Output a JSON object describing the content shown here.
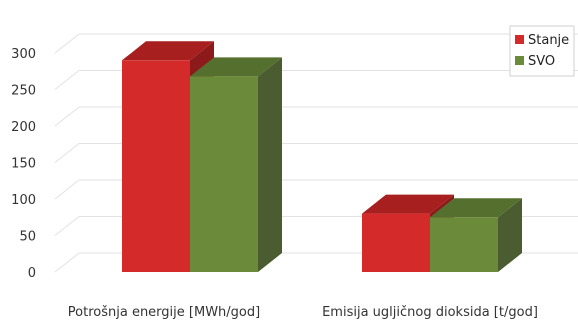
{
  "chart_data": {
    "type": "bar",
    "title": "",
    "xlabel": "",
    "ylabel": "",
    "categories": [
      "Potrošnja energije [MWh/god]",
      "Emisija ugljičnog dioksida [t/god]"
    ],
    "series": [
      {
        "name": "Stanje",
        "values": [
          290,
          80
        ]
      },
      {
        "name": "SVO",
        "values": [
          268,
          75
        ]
      }
    ],
    "ylim": [
      0,
      300
    ],
    "yticks": [
      "0",
      "50",
      "100",
      "150",
      "200",
      "250",
      "300"
    ],
    "grid": true,
    "legend_position": "top-right",
    "three_d": true,
    "colors": {
      "Stanje": {
        "front": "#d42a2a",
        "top": "#a81f1f",
        "side": "#8c1a1a"
      },
      "SVO": {
        "front": "#6b8a3a",
        "top": "#55702e",
        "side": "#4a5c30"
      },
      "grid": "#e2e2e2"
    }
  }
}
